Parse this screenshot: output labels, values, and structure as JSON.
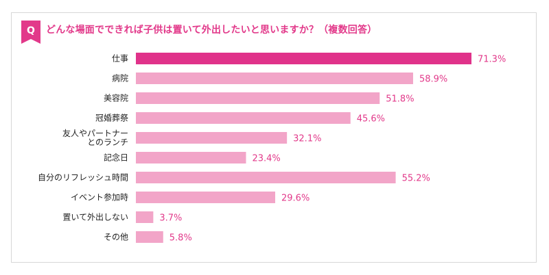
{
  "header": {
    "badge": "Q",
    "question": "どんな場面でできれば子供は置いて外出したいと思いますか？（複数回答）"
  },
  "colors": {
    "accent": "#e2398a",
    "bar_highlight": "#e0328a",
    "bar_default": "#f2a5c8",
    "value_text": "#e2398a",
    "border": "#d6d6d6"
  },
  "chart_data": {
    "type": "bar",
    "orientation": "horizontal",
    "title": "どんな場面でできれば子供は置いて外出したいと思いますか？（複数回答）",
    "categories": [
      [
        "仕事"
      ],
      [
        "病院"
      ],
      [
        "美容院"
      ],
      [
        "冠婚葬祭"
      ],
      [
        "友人やパートナー",
        "とのランチ"
      ],
      [
        "記念日"
      ],
      [
        "自分のリフレッシュ時間"
      ],
      [
        "イベント参加時"
      ],
      [
        "置いて外出しない"
      ],
      [
        "その他"
      ]
    ],
    "values": [
      71.3,
      58.9,
      51.8,
      45.6,
      32.1,
      23.4,
      55.2,
      29.6,
      3.7,
      5.8
    ],
    "value_labels": [
      "71.3%",
      "58.9%",
      "51.8%",
      "45.6%",
      "32.1%",
      "23.4%",
      "55.2%",
      "29.6%",
      "3.7%",
      "5.8%"
    ],
    "highlight_index": 0,
    "unit": "%",
    "xlim": [
      0,
      71.3
    ],
    "grid": false,
    "legend": "none"
  }
}
